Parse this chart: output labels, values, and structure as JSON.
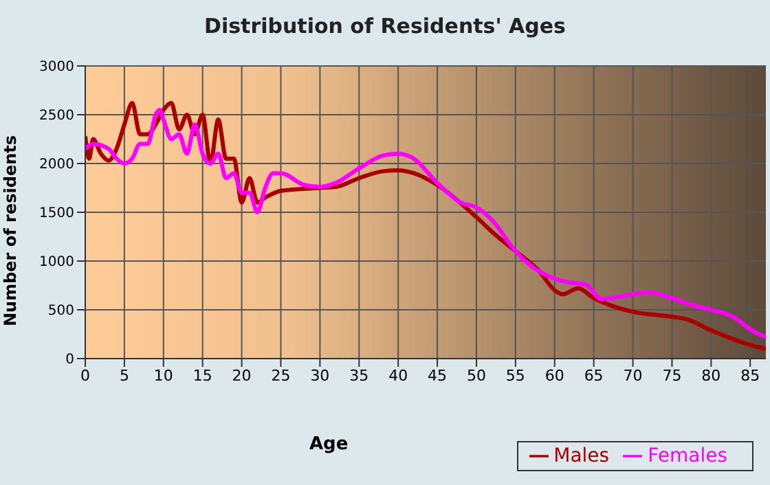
{
  "chart_data": {
    "type": "line",
    "title": "Distribution of Residents' Ages",
    "xlabel": "Age",
    "ylabel": "Number of residents",
    "xlim": [
      0,
      87
    ],
    "xticks": [
      0,
      5,
      10,
      15,
      20,
      25,
      30,
      35,
      40,
      45,
      50,
      55,
      60,
      65,
      70,
      75,
      80,
      85
    ],
    "ylim": [
      0,
      3000
    ],
    "yticks": [
      0,
      500,
      1000,
      1500,
      2000,
      2500,
      3000
    ],
    "grid": true,
    "legend": "bottom right",
    "marker": "none",
    "line_style": "solid",
    "series": [
      {
        "name": "Males",
        "color": "#aa0000",
        "x": [
          0,
          0.5,
          1,
          2,
          3,
          4,
          5,
          6,
          7,
          8,
          9,
          10,
          11,
          12,
          13,
          14,
          15,
          16,
          17,
          18,
          19,
          20,
          21,
          22,
          23,
          25,
          30,
          32,
          35,
          38,
          40,
          42,
          45,
          50,
          52,
          55,
          58,
          60,
          61,
          63,
          65,
          67,
          70,
          75,
          77,
          80,
          85,
          87
        ],
        "values": [
          2280,
          2050,
          2250,
          2100,
          2030,
          2150,
          2400,
          2620,
          2300,
          2300,
          2400,
          2550,
          2620,
          2350,
          2500,
          2300,
          2500,
          2000,
          2450,
          2050,
          2050,
          1600,
          1850,
          1600,
          1650,
          1720,
          1750,
          1760,
          1850,
          1920,
          1930,
          1900,
          1780,
          1450,
          1300,
          1100,
          900,
          700,
          660,
          720,
          620,
          550,
          480,
          430,
          400,
          290,
          140,
          100
        ]
      },
      {
        "name": "Females",
        "color": "#ff00ff",
        "x": [
          0,
          1,
          3,
          4,
          5,
          6,
          7,
          8,
          9,
          9.5,
          10,
          11,
          12,
          13,
          14,
          15,
          16,
          17,
          18,
          19,
          20,
          21,
          22,
          23,
          24,
          25,
          28,
          30,
          32,
          35,
          38,
          40,
          42,
          45,
          48,
          50,
          52,
          55,
          57,
          60,
          62,
          64,
          66,
          68,
          70,
          72,
          75,
          78,
          80,
          83,
          85,
          87
        ],
        "values": [
          2150,
          2200,
          2150,
          2050,
          2000,
          2050,
          2200,
          2200,
          2500,
          2550,
          2450,
          2250,
          2300,
          2100,
          2400,
          2100,
          2000,
          2100,
          1850,
          1900,
          1700,
          1700,
          1500,
          1750,
          1900,
          1900,
          1780,
          1760,
          1800,
          1950,
          2080,
          2100,
          2050,
          1800,
          1600,
          1550,
          1420,
          1100,
          950,
          820,
          780,
          760,
          610,
          630,
          660,
          680,
          620,
          540,
          500,
          420,
          300,
          220
        ]
      }
    ]
  }
}
